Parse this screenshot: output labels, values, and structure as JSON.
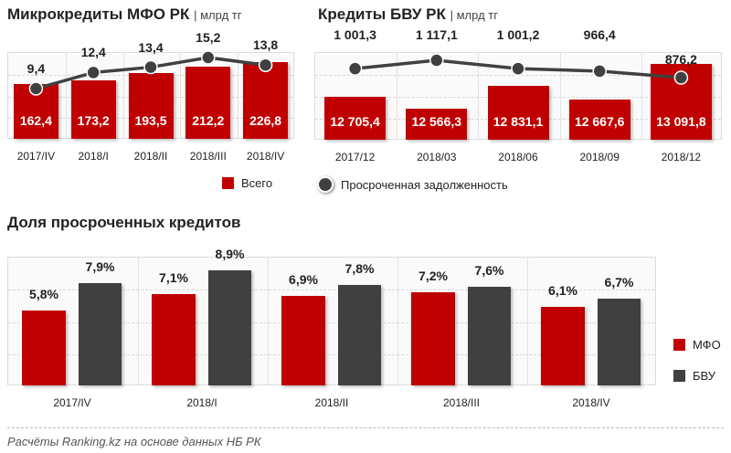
{
  "chart_data": [
    {
      "type": "bar+line",
      "title": "Микрокредиты МФО РК",
      "unit": "| млрд тг",
      "categories": [
        "2017/IV",
        "2018/I",
        "2018/II",
        "2018/III",
        "2018/IV"
      ],
      "series": [
        {
          "name": "Всего",
          "type": "bar",
          "color": "#c00000",
          "values": [
            162.4,
            173.2,
            193.5,
            212.2,
            226.8
          ],
          "labels": [
            "162,4",
            "173,2",
            "193,5",
            "212,2",
            "226,8"
          ]
        },
        {
          "name": "Просроченная задолженность",
          "type": "line",
          "color": "#404040",
          "values": [
            9.4,
            12.4,
            13.4,
            15.2,
            13.8
          ],
          "labels": [
            "9,4",
            "12,4",
            "13,4",
            "15,2",
            "13,8"
          ]
        }
      ],
      "legend": "bottom",
      "grid": true
    },
    {
      "type": "bar+line",
      "title": "Кредиты БВУ РК",
      "unit": "| млрд тг",
      "categories": [
        "2017/12",
        "2018/03",
        "2018/06",
        "2018/09",
        "2018/12"
      ],
      "series": [
        {
          "name": "Всего",
          "type": "bar",
          "color": "#c00000",
          "values": [
            12705.4,
            12566.3,
            12831.1,
            12667.6,
            13091.8
          ],
          "labels": [
            "12 705,4",
            "12 566,3",
            "12 831,1",
            "12 667,6",
            "13 091,8"
          ]
        },
        {
          "name": "Просроченная задолженность",
          "type": "line",
          "color": "#404040",
          "values": [
            1001.3,
            1117.1,
            1001.2,
            966.4,
            876.2
          ],
          "labels": [
            "1 001,3",
            "1 117,1",
            "1 001,2",
            "966,4",
            "876,2"
          ]
        }
      ],
      "legend": "bottom",
      "grid": true
    },
    {
      "type": "bar",
      "title": "Доля просроченных кредитов",
      "categories": [
        "2017/IV",
        "2018/I",
        "2018/II",
        "2018/III",
        "2018/IV"
      ],
      "series": [
        {
          "name": "МФО",
          "color": "#c00000",
          "values": [
            5.8,
            7.1,
            6.9,
            7.2,
            6.1
          ],
          "labels": [
            "5,8%",
            "7,1%",
            "6,9%",
            "7,2%",
            "6,1%"
          ]
        },
        {
          "name": "БВУ",
          "color": "#404040",
          "values": [
            7.9,
            8.9,
            7.8,
            7.6,
            6.7
          ],
          "labels": [
            "7,9%",
            "8,9%",
            "7,8%",
            "7,6%",
            "6,7%"
          ]
        }
      ],
      "ylim": [
        0,
        10
      ],
      "legend": "right",
      "grid": true
    }
  ],
  "legend": {
    "total": "Всего",
    "overdue": "Просроченная задолженность"
  },
  "footer": "Расчёты Ranking.kz на основе данных НБ РК"
}
